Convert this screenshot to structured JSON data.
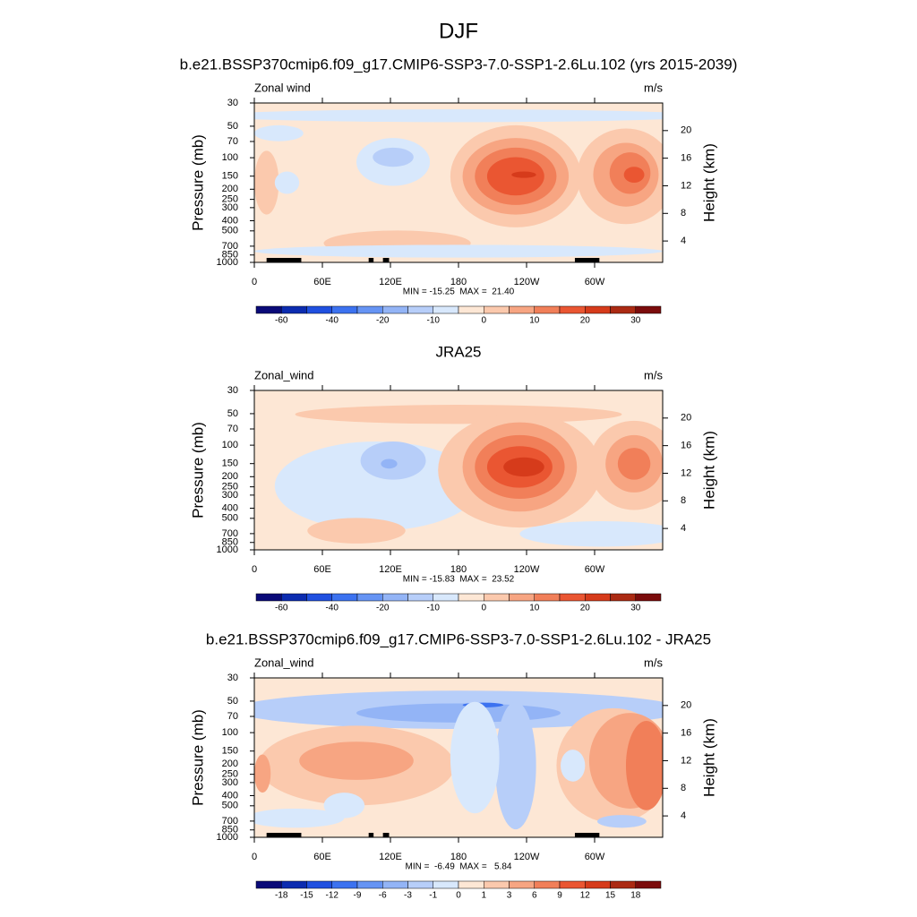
{
  "title": "DJF",
  "chart_data": [
    {
      "type": "contour",
      "title": "b.e21.BSSP370cmip6.f09_g17.CMIP6-SSP3-7.0-SSP1-2.6Lu.102 (yrs 2015-2039)",
      "left_label": "Zonal wind",
      "units": "m/s",
      "stats": "MIN = -15.25  MAX =  21.40",
      "ylabel": "Pressure (mb)",
      "y2label": "Height (km)",
      "yscale": "log",
      "xlim": [
        0,
        360
      ],
      "xticks": [
        0,
        {
          "value": 60,
          "label": "60E"
        },
        {
          "value": 120,
          "label": "120E"
        },
        180,
        {
          "value": 240,
          "label": "120W"
        },
        {
          "value": 300,
          "label": "60W"
        }
      ],
      "ylim": [
        1000,
        30
      ],
      "yticks": [
        30,
        50,
        70,
        100,
        150,
        200,
        250,
        300,
        400,
        500,
        700,
        850,
        1000
      ],
      "y2lim": [
        0.9,
        24.0
      ],
      "y2ticks": [
        4,
        8,
        12,
        16,
        20
      ],
      "colorbar": {
        "colors": [
          "#0a0a78",
          "#0c2cb0",
          "#2050e0",
          "#3c72f0",
          "#6694f4",
          "#93b4f6",
          "#b7cef9",
          "#d8e8fc",
          "#fde7d5",
          "#fbc9ad",
          "#f7a582",
          "#f17f59",
          "#ea5632",
          "#d63b1b",
          "#ab2a13",
          "#7b0c0c"
        ],
        "labels": [
          -60,
          -40,
          -20,
          -10,
          0,
          10,
          20,
          30
        ]
      }
    },
    {
      "type": "contour",
      "title": "JRA25",
      "left_label": "Zonal_wind",
      "units": "m/s",
      "stats": "MIN = -15.83  MAX =  23.52",
      "ylabel": "Pressure (mb)",
      "y2label": "Height (km)",
      "yscale": "log",
      "xlim": [
        0,
        360
      ],
      "xticks": [
        0,
        {
          "value": 60,
          "label": "60E"
        },
        {
          "value": 120,
          "label": "120E"
        },
        180,
        {
          "value": 240,
          "label": "120W"
        },
        {
          "value": 300,
          "label": "60W"
        }
      ],
      "ylim": [
        1000,
        30
      ],
      "yticks": [
        30,
        50,
        70,
        100,
        150,
        200,
        250,
        300,
        400,
        500,
        700,
        850,
        1000
      ],
      "y2lim": [
        0.9,
        24.0
      ],
      "y2ticks": [
        4,
        8,
        12,
        16,
        20
      ],
      "colorbar": {
        "colors": [
          "#0a0a78",
          "#0c2cb0",
          "#2050e0",
          "#3c72f0",
          "#6694f4",
          "#93b4f6",
          "#b7cef9",
          "#d8e8fc",
          "#fde7d5",
          "#fbc9ad",
          "#f7a582",
          "#f17f59",
          "#ea5632",
          "#d63b1b",
          "#ab2a13",
          "#7b0c0c"
        ],
        "labels": [
          -60,
          -40,
          -20,
          -10,
          0,
          10,
          20,
          30
        ]
      }
    },
    {
      "type": "contour",
      "title": "b.e21.BSSP370cmip6.f09_g17.CMIP6-SSP3-7.0-SSP1-2.6Lu.102 - JRA25",
      "left_label": "Zonal_wind",
      "units": "m/s",
      "stats": "MIN =  -6.49  MAX =   5.84",
      "ylabel": "Pressure (mb)",
      "y2label": "Height (km)",
      "yscale": "log",
      "xlim": [
        0,
        360
      ],
      "xticks": [
        0,
        {
          "value": 60,
          "label": "60E"
        },
        {
          "value": 120,
          "label": "120E"
        },
        180,
        {
          "value": 240,
          "label": "120W"
        },
        {
          "value": 300,
          "label": "60W"
        }
      ],
      "ylim": [
        1000,
        30
      ],
      "yticks": [
        30,
        50,
        70,
        100,
        150,
        200,
        250,
        300,
        400,
        500,
        700,
        850,
        1000
      ],
      "y2lim": [
        0.9,
        24.0
      ],
      "y2ticks": [
        4,
        8,
        12,
        16,
        20
      ],
      "colorbar": {
        "colors": [
          "#0a0a78",
          "#0c2cb0",
          "#2050e0",
          "#3c72f0",
          "#6694f4",
          "#93b4f6",
          "#b7cef9",
          "#d8e8fc",
          "#fde7d5",
          "#fbc9ad",
          "#f7a582",
          "#f17f59",
          "#ea5632",
          "#d63b1b",
          "#ab2a13",
          "#7b0c0c"
        ],
        "labels": [
          -18,
          -15,
          -12,
          -9,
          -6,
          -3,
          -1,
          0,
          1,
          3,
          6,
          9,
          12,
          15,
          18
        ]
      }
    }
  ]
}
